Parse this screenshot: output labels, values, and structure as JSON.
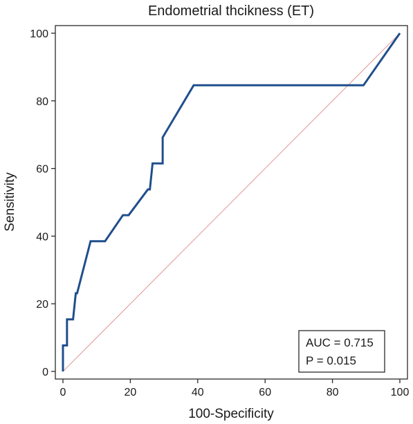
{
  "chart_data": {
    "type": "line",
    "title": "Endometrial thcikness (ET)",
    "xlabel": "100-Specificity",
    "ylabel": "Sensitivity",
    "xlim": [
      0,
      100
    ],
    "ylim": [
      0,
      100
    ],
    "x_ticks": [
      "0",
      "20",
      "40",
      "60",
      "80",
      "100"
    ],
    "y_ticks": [
      "0",
      "20",
      "40",
      "60",
      "80",
      "100"
    ],
    "grid": false,
    "legend_position": "bottom-right",
    "series": [
      {
        "color": "#1f4e8c",
        "points": [
          [
            0,
            0
          ],
          [
            0,
            7.7
          ],
          [
            1.2,
            7.7
          ],
          [
            1.2,
            15.4
          ],
          [
            3,
            15.4
          ],
          [
            3.8,
            23.1
          ],
          [
            4.2,
            23.1
          ],
          [
            8.2,
            38.5
          ],
          [
            12.5,
            38.5
          ],
          [
            17.8,
            46.2
          ],
          [
            19.5,
            46.2
          ],
          [
            25.2,
            53.8
          ],
          [
            25.8,
            53.8
          ],
          [
            26.6,
            61.5
          ],
          [
            29.6,
            61.5
          ],
          [
            29.6,
            69.2
          ],
          [
            38.8,
            84.6
          ],
          [
            89.2,
            84.6
          ],
          [
            100,
            100
          ]
        ]
      },
      {
        "color": "#e3a5a5",
        "points": [
          [
            0,
            0
          ],
          [
            100,
            100
          ]
        ]
      }
    ],
    "annotations": {
      "auc": "AUC = 0.715",
      "p": "P = 0.015"
    }
  }
}
